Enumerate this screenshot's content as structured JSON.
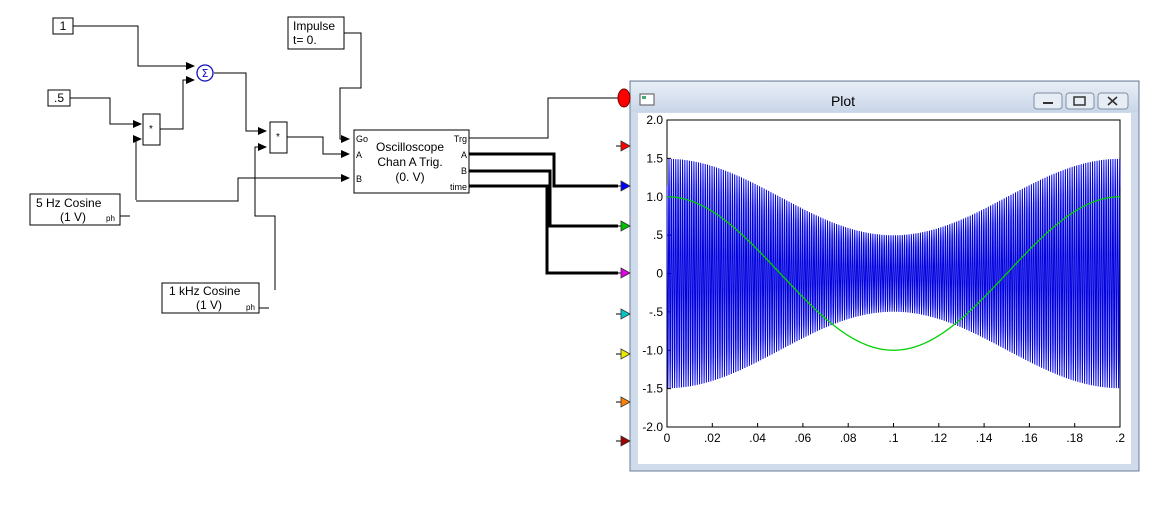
{
  "blocks": {
    "const1": "1",
    "const_half": ".5",
    "impulse": [
      "Impulse",
      "t= 0."
    ],
    "cos5": [
      "5 Hz Cosine",
      "(1 V)"
    ],
    "cos1k": [
      "1 kHz Cosine",
      "(1 V)"
    ],
    "ph_label": "ph",
    "summer_symbol": "Σ",
    "mult_symbol": "*",
    "scope": {
      "title": [
        "Oscilloscope",
        "Chan  A Trig.",
        "(0. V)"
      ],
      "inputs": [
        "Go",
        "A",
        "B"
      ],
      "outputs": [
        "Trg",
        "A",
        "B",
        "time"
      ]
    }
  },
  "plot_window": {
    "title": "Plot"
  },
  "probe_colors": [
    "#ff0000",
    "#0000ff",
    "#00c000",
    "#e000e0",
    "#00c8c8",
    "#e8e800",
    "#ff8000",
    "#a00000"
  ],
  "chart_data": {
    "type": "line",
    "xlim": [
      0,
      0.2
    ],
    "ylim": [
      -2.0,
      2.0
    ],
    "x_ticks": [
      "0",
      ".02",
      ".04",
      ".06",
      ".08",
      ".1",
      ".12",
      ".14",
      ".16",
      ".18",
      ".2"
    ],
    "y_ticks": [
      "2.0",
      "1.5",
      "1.0",
      ".5",
      "0",
      "-.5",
      "-1.0",
      "-1.5",
      "-2.0"
    ],
    "x_tick_values": [
      0,
      0.02,
      0.04,
      0.06,
      0.08,
      0.1,
      0.12,
      0.14,
      0.16,
      0.18,
      0.2
    ],
    "y_tick_values": [
      2.0,
      1.5,
      1.0,
      0.5,
      0,
      -0.5,
      -1.0,
      -1.5,
      -2.0
    ],
    "series": [
      {
        "color": "#0000e0",
        "kind": "am_signal",
        "offset": 1,
        "modulation_index": 0.5,
        "modulation_freq_hz": 5,
        "carrier_freq_hz": 1000
      },
      {
        "color": "#00d000",
        "kind": "modulator_cosine",
        "amplitude": 1,
        "freq_hz": 5
      }
    ]
  }
}
